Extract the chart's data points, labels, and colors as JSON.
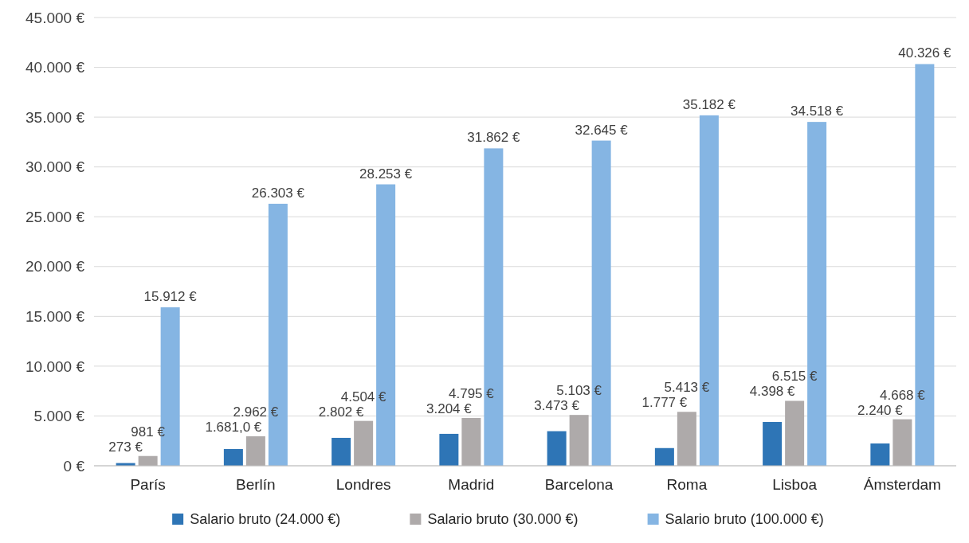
{
  "chart_data": {
    "type": "bar",
    "categories": [
      "París",
      "Berlín",
      "Londres",
      "Madrid",
      "Barcelona",
      "Roma",
      "Lisboa",
      "Ámsterdam"
    ],
    "series": [
      {
        "name": "Salario bruto (24.000 €)",
        "color": "#2e75b6",
        "values": [
          273,
          1681,
          2802,
          3204,
          3473,
          1777,
          4398,
          2240
        ],
        "value_labels": [
          "273 €",
          "1.681,0 €",
          "2.802 €",
          "3.204 €",
          "3.473 €",
          "1.777 €",
          "4.398 €",
          "2.240 €"
        ]
      },
      {
        "name": "Salario bruto (30.000 €)",
        "color": "#aeaaaa",
        "values": [
          981,
          2962,
          4504,
          4795,
          5103,
          5413,
          6515,
          4668
        ],
        "value_labels": [
          "981 €",
          "2.962 €",
          "4.504 €",
          "4.795 €",
          "5.103 €",
          "5.413 €",
          "6.515 €",
          "4.668 €"
        ]
      },
      {
        "name": "Salario bruto (100.000 €)",
        "color": "#85b5e3",
        "values": [
          15912,
          26303,
          28253,
          31862,
          32645,
          35182,
          34518,
          40326
        ],
        "value_labels": [
          "15.912 €",
          "26.303 €",
          "28.253 €",
          "31.862 €",
          "32.645 €",
          "35.182 €",
          "34.518 €",
          "40.326 €"
        ]
      }
    ],
    "ylim": [
      0,
      45000
    ],
    "yticks": [
      {
        "value": 0,
        "label": "0 €"
      },
      {
        "value": 5000,
        "label": "5.000 €"
      },
      {
        "value": 10000,
        "label": "10.000 €"
      },
      {
        "value": 15000,
        "label": "15.000 €"
      },
      {
        "value": 20000,
        "label": "20.000 €"
      },
      {
        "value": 25000,
        "label": "25.000 €"
      },
      {
        "value": 30000,
        "label": "30.000 €"
      },
      {
        "value": 35000,
        "label": "35.000 €"
      },
      {
        "value": 40000,
        "label": "40.000 €"
      },
      {
        "value": 45000,
        "label": "45.000 €"
      }
    ],
    "grid": "y",
    "legend": "bottom"
  }
}
